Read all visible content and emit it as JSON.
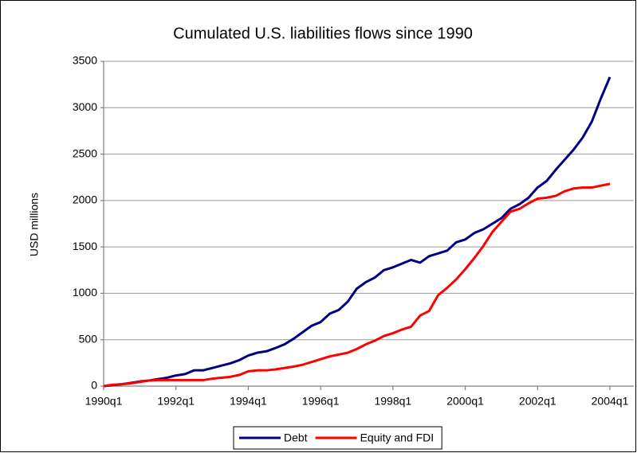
{
  "chart_data": {
    "type": "line",
    "title": "Cumulated U.S. liabilities flows since 1990",
    "y_label": "USD millions",
    "categories": [
      "1990q1",
      null,
      null,
      null,
      null,
      null,
      null,
      null,
      "1992q1",
      null,
      null,
      null,
      null,
      null,
      null,
      null,
      "1994q1",
      null,
      null,
      null,
      null,
      null,
      null,
      null,
      "1996q1",
      null,
      null,
      null,
      null,
      null,
      null,
      null,
      "1998q1",
      null,
      null,
      null,
      null,
      null,
      null,
      null,
      "2000q1",
      null,
      null,
      null,
      null,
      null,
      null,
      null,
      "2002q1",
      null,
      null,
      null,
      null,
      null,
      null,
      null,
      "2004q1"
    ],
    "series": [
      {
        "name": "Debt",
        "color": "#000080",
        "values": [
          0,
          10,
          20,
          35,
          50,
          60,
          75,
          90,
          115,
          130,
          170,
          170,
          195,
          220,
          245,
          280,
          330,
          360,
          375,
          410,
          450,
          510,
          580,
          650,
          690,
          780,
          820,
          910,
          1050,
          1120,
          1170,
          1250,
          1280,
          1320,
          1360,
          1330,
          1400,
          1430,
          1460,
          1550,
          1580,
          1650,
          1690,
          1750,
          1810,
          1910,
          1960,
          2030,
          2140,
          2210,
          2330,
          2440,
          2550,
          2680,
          2850,
          3100,
          3330
        ]
      },
      {
        "name": "Equity and FDI",
        "color": "#ff0000",
        "values": [
          0,
          15,
          20,
          30,
          45,
          60,
          65,
          65,
          65,
          65,
          65,
          65,
          80,
          90,
          100,
          120,
          160,
          170,
          170,
          180,
          195,
          210,
          230,
          260,
          290,
          320,
          340,
          360,
          400,
          450,
          490,
          540,
          570,
          610,
          640,
          760,
          810,
          980,
          1060,
          1150,
          1260,
          1380,
          1510,
          1660,
          1770,
          1880,
          1910,
          1970,
          2020,
          2030,
          2050,
          2100,
          2130,
          2140,
          2140,
          2160,
          2180
        ]
      }
    ],
    "ylim": [
      0,
      3500
    ],
    "yticks": [
      0,
      500,
      1000,
      1500,
      2000,
      2500,
      3000,
      3500
    ],
    "grid": true,
    "legend": "bottom"
  }
}
